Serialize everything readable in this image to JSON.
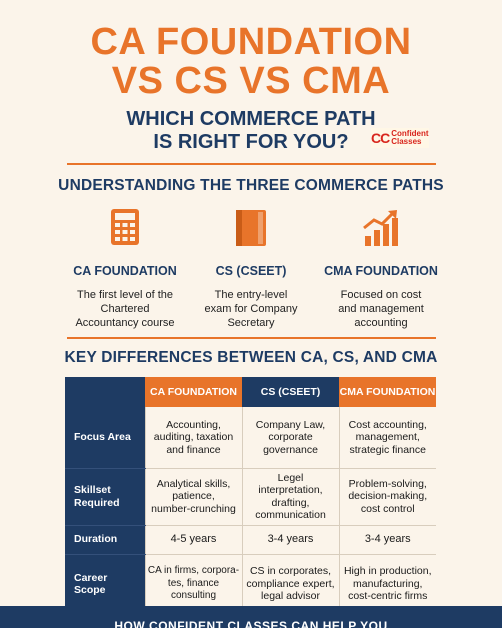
{
  "header": {
    "title_line1": "CA FOUNDATION",
    "title_line2": "VS CS VS CMA",
    "subtitle_line1": "WHICH COMMERCE PATH",
    "subtitle_line2": "IS RIGHT FOR YOU?",
    "logo": {
      "mark": "CC",
      "word1": "Confident",
      "word2": "Classes"
    }
  },
  "paths": {
    "heading": "UNDERSTANDING THE THREE COMMERCE PATHS",
    "items": [
      {
        "name": "CA FOUNDATION",
        "icon": "calculator-icon",
        "desc1": "The first level of the",
        "desc2": "Chartered",
        "desc3": "Accountancy course"
      },
      {
        "name": "CS (CSEET)",
        "icon": "book-icon",
        "desc1": "The entry-level",
        "desc2": "exam for Company",
        "desc3": "Secretary"
      },
      {
        "name": "CMA FOUNDATION",
        "icon": "growth-chart-icon",
        "desc1": "Focused on cost",
        "desc2": "and management",
        "desc3": "accounting"
      }
    ]
  },
  "differences": {
    "heading": "KEY DIFFERENCES BETWEEN CA, CS, AND CMA",
    "columns": [
      "CA FOUNDATION",
      "CS (CSEET)",
      "CMA FOUNDATION"
    ],
    "rows": [
      {
        "label1": "Focus Area",
        "label2": "",
        "ca": [
          "Accounting,",
          "auditing, taxation",
          "and finance"
        ],
        "cs": [
          "Company Law,",
          "corporate",
          "governance"
        ],
        "cma": [
          "Cost accounting,",
          "management,",
          "strategic finance"
        ]
      },
      {
        "label1": "Skillset",
        "label2": "Required",
        "ca": [
          "Analytical skills,",
          "patience,",
          "number-crunching"
        ],
        "cs": [
          "Legel interpretation,",
          "drafting,",
          "communication"
        ],
        "cma": [
          "Problem-solving,",
          "decision-making,",
          "cost control"
        ]
      },
      {
        "label1": "Duration",
        "label2": "",
        "ca": [
          "4-5 years",
          "",
          ""
        ],
        "cs": [
          "3-4 years",
          "",
          ""
        ],
        "cma": [
          "3-4 years",
          "",
          ""
        ]
      },
      {
        "label1": "Career",
        "label2": "Scope",
        "ca": [
          "CA in firms, corpora-",
          "tes, finance consulting",
          ""
        ],
        "cs": [
          "CS in corporates,",
          "compliance expert,",
          "legal advisor"
        ],
        "cma": [
          "High in production,",
          "manufacturing,",
          "cost-centric firms"
        ]
      }
    ]
  },
  "banner": {
    "text": "HOW CONFIDENT CLASSES CAN HELP YOU"
  },
  "colors": {
    "accent": "#e8742a",
    "navy": "#1e3b63",
    "background": "#fbf4ea"
  }
}
